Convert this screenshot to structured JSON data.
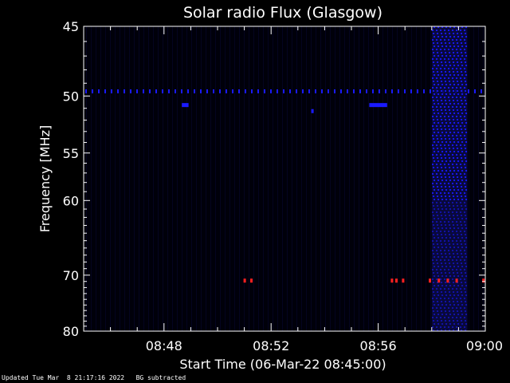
{
  "chart_data": {
    "type": "heatmap",
    "title": "Solar radio Flux (Glasgow)",
    "ylabel": "Frequency [MHz]",
    "xlabel": "Start Time (06-Mar-22 08:45:00)",
    "y_scale": "log",
    "ylim": [
      80,
      45
    ],
    "xlim": [
      "08:45:00",
      "09:00:00"
    ],
    "y_ticks": [
      45,
      50,
      55,
      60,
      70,
      80
    ],
    "x_ticks": [
      "08:48",
      "08:52",
      "08:56",
      "09:00"
    ],
    "colormap": [
      "#00000a",
      "#0a0a3a",
      "#1a1aff",
      "#ff2020"
    ],
    "features": [
      {
        "kind": "band",
        "freq_mhz": 49.6,
        "time": [
          "08:45:00",
          "09:00:00"
        ],
        "level": "medium",
        "color": "#1a1aff"
      },
      {
        "kind": "burst",
        "freq_mhz": [
          45,
          80
        ],
        "time": [
          "08:58:00",
          "08:59:20"
        ],
        "level": "medium",
        "color": "#1a1aff"
      },
      {
        "kind": "patch",
        "freq_mhz": 50.7,
        "time": [
          "08:48:40",
          "08:48:55"
        ],
        "level": "medium",
        "color": "#1a1aff"
      },
      {
        "kind": "patch",
        "freq_mhz": 50.7,
        "time": [
          "08:55:40",
          "08:56:20"
        ],
        "level": "medium",
        "color": "#1a1aff"
      },
      {
        "kind": "patch",
        "freq_mhz": 51.2,
        "time": [
          "08:53:30",
          "08:53:35"
        ],
        "level": "medium",
        "color": "#1a1aff"
      },
      {
        "kind": "dot",
        "freq_mhz": 70.8,
        "time": "08:51:00",
        "level": "high",
        "color": "#ff2020"
      },
      {
        "kind": "dot",
        "freq_mhz": 70.8,
        "time": "08:51:15",
        "level": "high",
        "color": "#ff2020"
      },
      {
        "kind": "dot",
        "freq_mhz": 70.8,
        "time": "08:56:30",
        "level": "high",
        "color": "#ff2020"
      },
      {
        "kind": "dot",
        "freq_mhz": 70.8,
        "time": "08:56:40",
        "level": "high",
        "color": "#ff2020"
      },
      {
        "kind": "dot",
        "freq_mhz": 70.8,
        "time": "08:56:55",
        "level": "high",
        "color": "#ff2020"
      },
      {
        "kind": "dot",
        "freq_mhz": 70.8,
        "time": "08:57:55",
        "level": "high",
        "color": "#ff2020"
      },
      {
        "kind": "dot",
        "freq_mhz": 70.8,
        "time": "08:58:15",
        "level": "high",
        "color": "#ff2020"
      },
      {
        "kind": "dot",
        "freq_mhz": 70.8,
        "time": "08:58:35",
        "level": "high",
        "color": "#ff2020"
      },
      {
        "kind": "dot",
        "freq_mhz": 70.8,
        "time": "08:58:55",
        "level": "high",
        "color": "#ff2020"
      },
      {
        "kind": "dot",
        "freq_mhz": 70.8,
        "time": "08:59:55",
        "level": "high",
        "color": "#ff2020"
      }
    ]
  },
  "footer": {
    "updated": "Updated Tue Mar  8 21:17:16 2022",
    "note": "BG subtracted"
  }
}
